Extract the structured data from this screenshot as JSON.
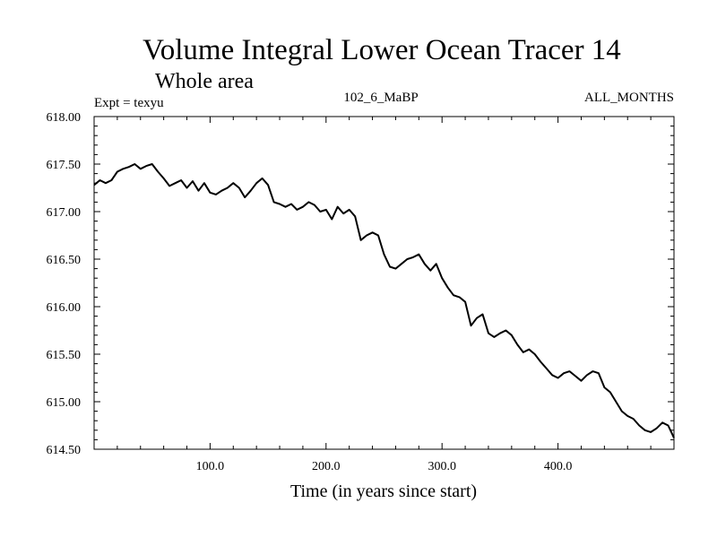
{
  "chart_data": {
    "type": "line",
    "title": "Volume Integral Lower Ocean Tracer 14",
    "subtitle": "Whole area",
    "annotations": {
      "left": "Expt = texyu",
      "center": "102_6_MaBP",
      "right": "ALL_MONTHS"
    },
    "xlabel": "Time (in years since start)",
    "ylabel": "",
    "xlim": [
      0,
      500
    ],
    "ylim": [
      614.5,
      618.0
    ],
    "x_ticks": [
      100,
      200,
      300,
      400
    ],
    "x_tick_labels": [
      "100.0",
      "200.0",
      "300.0",
      "400.0"
    ],
    "y_ticks": [
      614.5,
      615.0,
      615.5,
      616.0,
      616.5,
      617.0,
      617.5,
      618.0
    ],
    "y_tick_labels": [
      "614.50",
      "615.00",
      "615.50",
      "616.00",
      "616.50",
      "617.00",
      "617.50",
      "618.00"
    ],
    "grid": false,
    "legend": "none",
    "series": [
      {
        "color": "#000000",
        "x": [
          0,
          5,
          10,
          15,
          20,
          25,
          30,
          35,
          40,
          45,
          50,
          55,
          60,
          65,
          70,
          75,
          80,
          85,
          90,
          95,
          100,
          105,
          110,
          115,
          120,
          125,
          130,
          135,
          140,
          145,
          150,
          155,
          160,
          165,
          170,
          175,
          180,
          185,
          190,
          195,
          200,
          205,
          210,
          215,
          220,
          225,
          230,
          235,
          240,
          245,
          250,
          255,
          260,
          265,
          270,
          275,
          280,
          285,
          290,
          295,
          300,
          305,
          310,
          315,
          320,
          325,
          330,
          335,
          340,
          345,
          350,
          355,
          360,
          365,
          370,
          375,
          380,
          385,
          390,
          395,
          400,
          405,
          410,
          415,
          420,
          425,
          430,
          435,
          440,
          445,
          450,
          455,
          460,
          465,
          470,
          475,
          480,
          485,
          490,
          495,
          500
        ],
        "y": [
          617.28,
          617.33,
          617.3,
          617.33,
          617.42,
          617.45,
          617.47,
          617.5,
          617.45,
          617.48,
          617.5,
          617.42,
          617.35,
          617.27,
          617.3,
          617.33,
          617.25,
          617.32,
          617.22,
          617.3,
          617.2,
          617.18,
          617.22,
          617.25,
          617.3,
          617.25,
          617.15,
          617.22,
          617.3,
          617.35,
          617.28,
          617.1,
          617.08,
          617.05,
          617.08,
          617.02,
          617.05,
          617.1,
          617.07,
          617.0,
          617.02,
          616.92,
          617.05,
          616.98,
          617.02,
          616.95,
          616.7,
          616.75,
          616.78,
          616.75,
          616.55,
          616.42,
          616.4,
          616.45,
          616.5,
          616.52,
          616.55,
          616.45,
          616.38,
          616.45,
          616.3,
          616.2,
          616.12,
          616.1,
          616.05,
          615.8,
          615.88,
          615.92,
          615.72,
          615.68,
          615.72,
          615.75,
          615.7,
          615.6,
          615.52,
          615.55,
          615.5,
          615.42,
          615.35,
          615.28,
          615.25,
          615.3,
          615.32,
          615.27,
          615.22,
          615.28,
          615.32,
          615.3,
          615.15,
          615.1,
          615.0,
          614.9,
          614.85,
          614.82,
          614.75,
          614.7,
          614.68,
          614.72,
          614.78,
          614.75,
          614.62
        ]
      }
    ]
  }
}
